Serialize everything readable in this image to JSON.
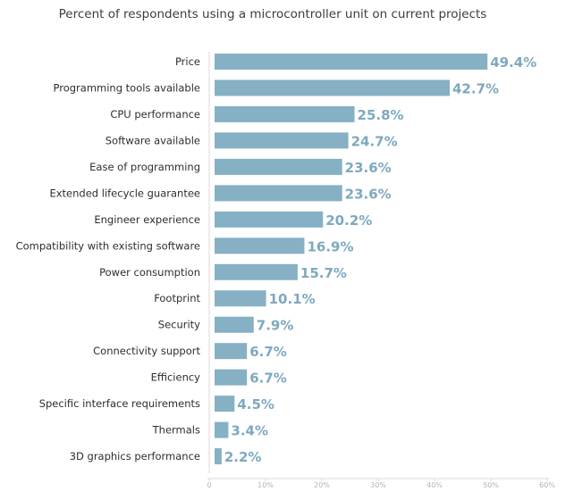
{
  "chart_data": {
    "type": "bar",
    "orientation": "horizontal",
    "title": "Percent of respondents using a microcontroller unit on current projects",
    "categories": [
      "Price",
      "Programming tools available",
      "CPU performance",
      "Software available",
      "Ease of programming",
      "Extended lifecycle guarantee",
      "Engineer experience",
      "Compatibility with existing software",
      "Power consumption",
      "Footprint",
      "Security",
      "Connectivity support",
      "Efficiency",
      "Specific interface requirements",
      "Thermals",
      "3D graphics performance"
    ],
    "values": [
      49.4,
      42.7,
      25.8,
      24.7,
      23.6,
      23.6,
      20.2,
      16.9,
      15.7,
      10.1,
      7.9,
      6.7,
      6.7,
      4.5,
      3.4,
      2.2
    ],
    "value_labels": [
      "49.4%",
      "42.7%",
      "25.8%",
      "24.7%",
      "23.6%",
      "23.6%",
      "20.2%",
      "16.9%",
      "15.7%",
      "10.1%",
      "7.9%",
      "6.7%",
      "6.7%",
      "4.5%",
      "3.4%",
      "2.2%"
    ],
    "xticks": [
      0,
      10,
      20,
      30,
      40,
      50,
      60
    ],
    "xtick_labels": [
      "0",
      "10%",
      "20%",
      "30%",
      "40%",
      "50%",
      "60%"
    ],
    "xlim": [
      0,
      60
    ],
    "grid": false,
    "colors": {
      "bar": "#86b0c4",
      "value_label": "#7ea9bf",
      "axis": "#d8d8d8",
      "tick_label": "#b4b4b4"
    }
  }
}
